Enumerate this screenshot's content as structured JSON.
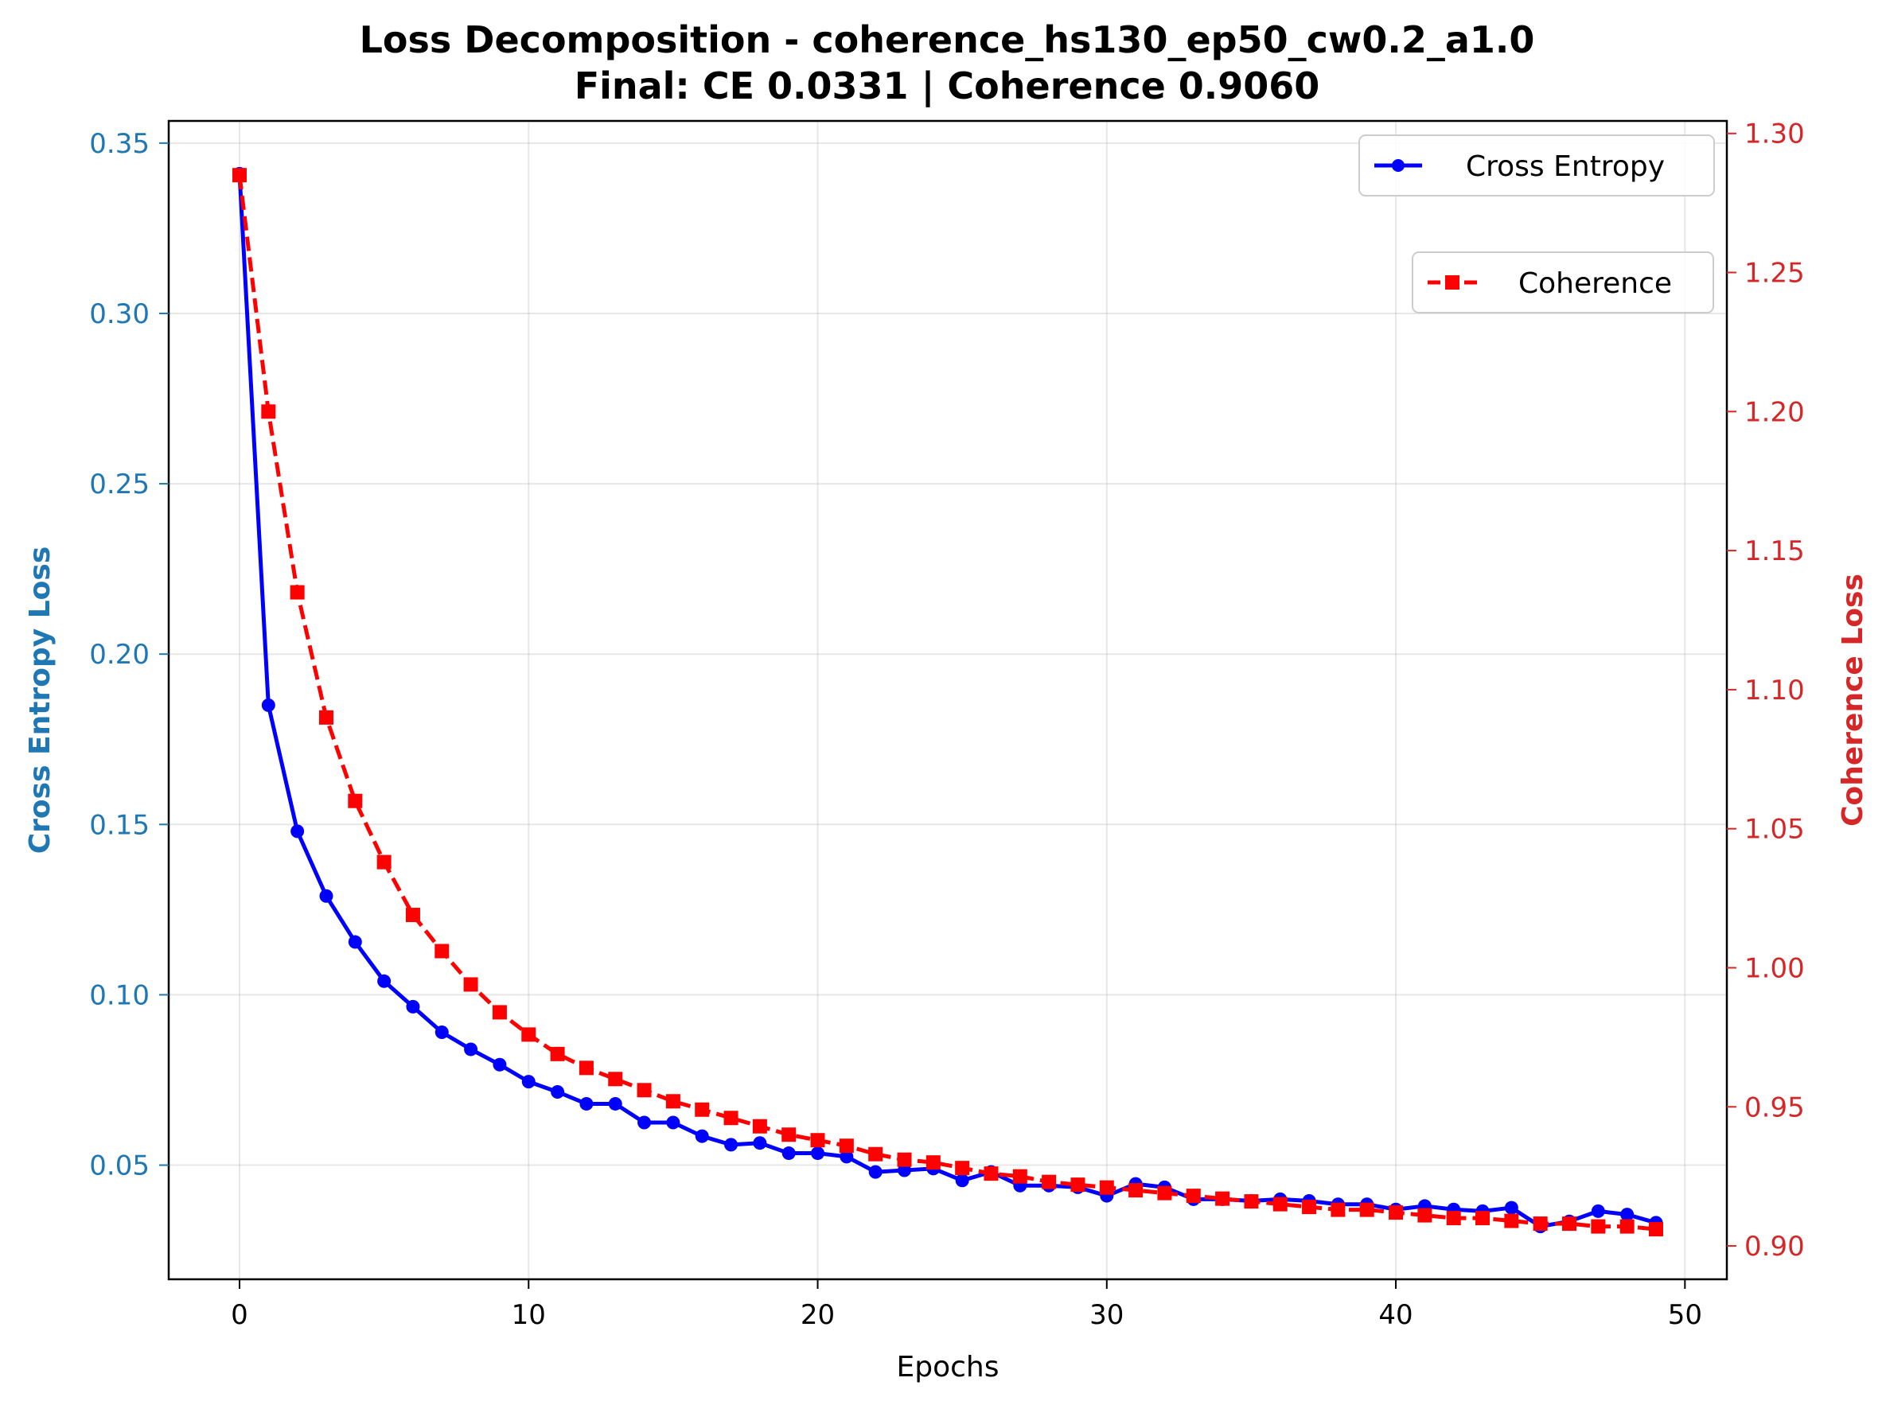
{
  "chart_data": {
    "type": "line",
    "title": "Loss Decomposition - coherence_hs130_ep50_cw0.2_a1.0",
    "subtitle": "Final: CE 0.0331 | Coherence 0.9060",
    "xlabel": "Epochs",
    "ylabel_left": "Cross Entropy Loss",
    "ylabel_right": "Coherence Loss",
    "xlim": [
      -2.45,
      51.45
    ],
    "ylim_left": [
      0.0165,
      0.3565
    ],
    "ylim_right": [
      0.888,
      1.3045
    ],
    "x_ticks": [
      0,
      10,
      20,
      30,
      40,
      50
    ],
    "y_ticks_left": [
      0.05,
      0.1,
      0.15,
      0.2,
      0.25,
      0.3,
      0.35
    ],
    "y_ticks_right": [
      0.9,
      0.95,
      1.0,
      1.05,
      1.1,
      1.15,
      1.2,
      1.25,
      1.3
    ],
    "grid": true,
    "x": [
      0,
      1,
      2,
      3,
      4,
      5,
      6,
      7,
      8,
      9,
      10,
      11,
      12,
      13,
      14,
      15,
      16,
      17,
      18,
      19,
      20,
      21,
      22,
      23,
      24,
      25,
      26,
      27,
      28,
      29,
      30,
      31,
      32,
      33,
      34,
      35,
      36,
      37,
      38,
      39,
      40,
      41,
      42,
      43,
      44,
      45,
      46,
      47,
      48,
      49
    ],
    "series": [
      {
        "name": "Cross Entropy",
        "axis": "left",
        "color": "#0000ff",
        "marker": "circle",
        "style": "solid",
        "legend_position": "top-right",
        "values": [
          0.341,
          0.185,
          0.148,
          0.129,
          0.1155,
          0.104,
          0.0965,
          0.089,
          0.084,
          0.0795,
          0.0745,
          0.0715,
          0.068,
          0.068,
          0.0625,
          0.0625,
          0.0585,
          0.056,
          0.0565,
          0.0535,
          0.0535,
          0.0525,
          0.048,
          0.0485,
          0.049,
          0.0455,
          0.048,
          0.044,
          0.044,
          0.0435,
          0.041,
          0.0445,
          0.0435,
          0.04,
          0.04,
          0.0395,
          0.04,
          0.0395,
          0.0385,
          0.0385,
          0.037,
          0.038,
          0.037,
          0.0365,
          0.0375,
          0.032,
          0.0335,
          0.0365,
          0.0355,
          0.0331
        ]
      },
      {
        "name": "Coherence",
        "axis": "right",
        "color": "#ff0000",
        "marker": "square",
        "style": "dashed",
        "legend_position": "upper right, below",
        "values": [
          1.285,
          1.2,
          1.135,
          1.09,
          1.06,
          1.038,
          1.019,
          1.006,
          0.994,
          0.984,
          0.976,
          0.969,
          0.964,
          0.96,
          0.956,
          0.952,
          0.949,
          0.946,
          0.943,
          0.94,
          0.938,
          0.936,
          0.933,
          0.931,
          0.93,
          0.928,
          0.926,
          0.925,
          0.923,
          0.922,
          0.921,
          0.92,
          0.919,
          0.918,
          0.917,
          0.916,
          0.915,
          0.914,
          0.913,
          0.913,
          0.912,
          0.911,
          0.91,
          0.91,
          0.909,
          0.908,
          0.908,
          0.907,
          0.907,
          0.906
        ]
      }
    ]
  }
}
